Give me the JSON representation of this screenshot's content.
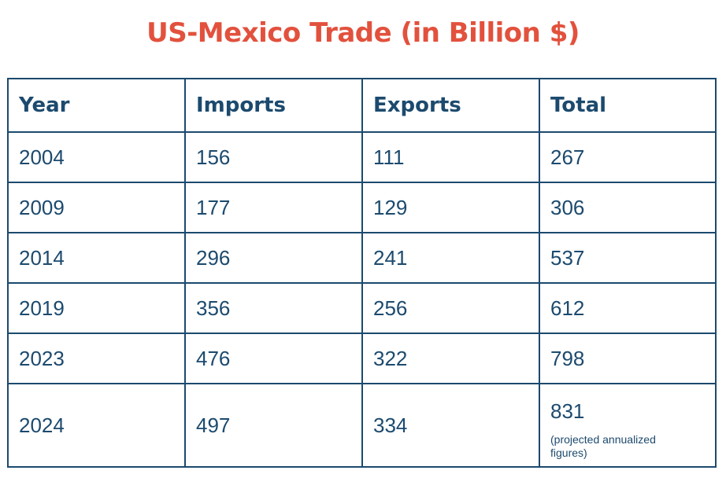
{
  "chart_data": {
    "type": "table",
    "title": "US-Mexico Trade (in Billion $)",
    "columns": [
      "Year",
      "Imports",
      "Exports",
      "Total"
    ],
    "rows": [
      [
        "2004",
        "156",
        "111",
        "267"
      ],
      [
        "2009",
        "177",
        "129",
        "306"
      ],
      [
        "2014",
        "296",
        "241",
        "537"
      ],
      [
        "2019",
        "356",
        "256",
        "612"
      ],
      [
        "2023",
        "476",
        "322",
        "798"
      ],
      [
        "2024",
        "497",
        "334",
        "831"
      ]
    ],
    "notes": {
      "2024_total": "(projected annualized figures)"
    },
    "colors": {
      "title": "#e2513d",
      "table_text": "#1c4a6e",
      "border": "#1c4a6e"
    }
  }
}
